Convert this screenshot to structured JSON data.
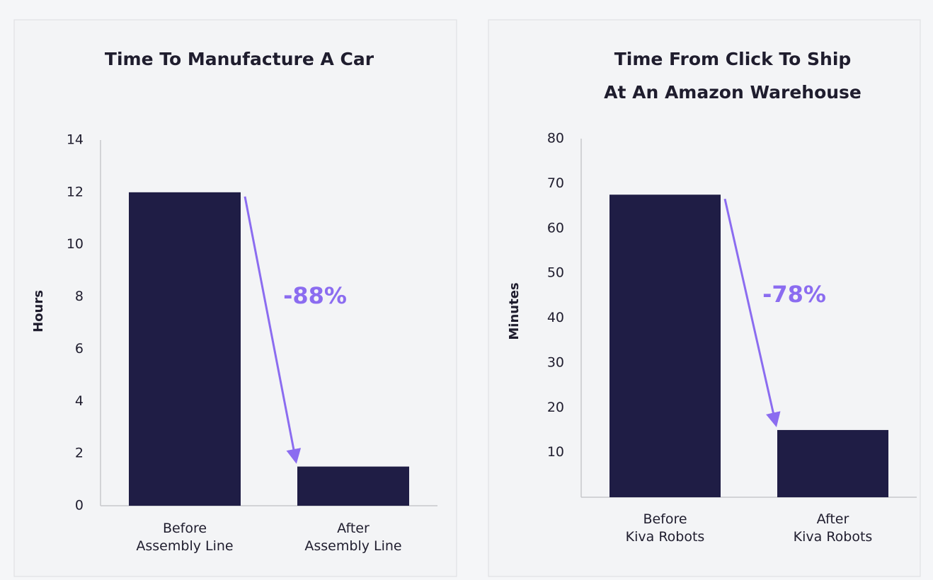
{
  "chart_data": [
    {
      "type": "bar",
      "title": "Time To Manufacture A Car",
      "y_label": "Hours",
      "categories": [
        "Before\nAssembly Line",
        "After\nAssembly Line"
      ],
      "values": [
        12,
        1.5
      ],
      "color": "#1f1d45",
      "ylim": [
        0,
        14
      ],
      "yticks": [
        0,
        2,
        4,
        6,
        8,
        10,
        12,
        14
      ],
      "annotation": "-88%",
      "annotation_color": "#8b6cf0"
    },
    {
      "type": "bar",
      "title": "Time From Click To Ship\nAt An Amazon Warehouse",
      "y_label": "Minutes",
      "categories": [
        "Before\nKiva Robots",
        "After\nKiva Robots"
      ],
      "values": [
        67.5,
        15
      ],
      "color": "#1f1d45",
      "ylim": [
        0,
        80
      ],
      "yticks": [
        10,
        20,
        30,
        40,
        50,
        60,
        70,
        80
      ],
      "annotation": "-78%",
      "annotation_color": "#8b6cf0"
    }
  ]
}
